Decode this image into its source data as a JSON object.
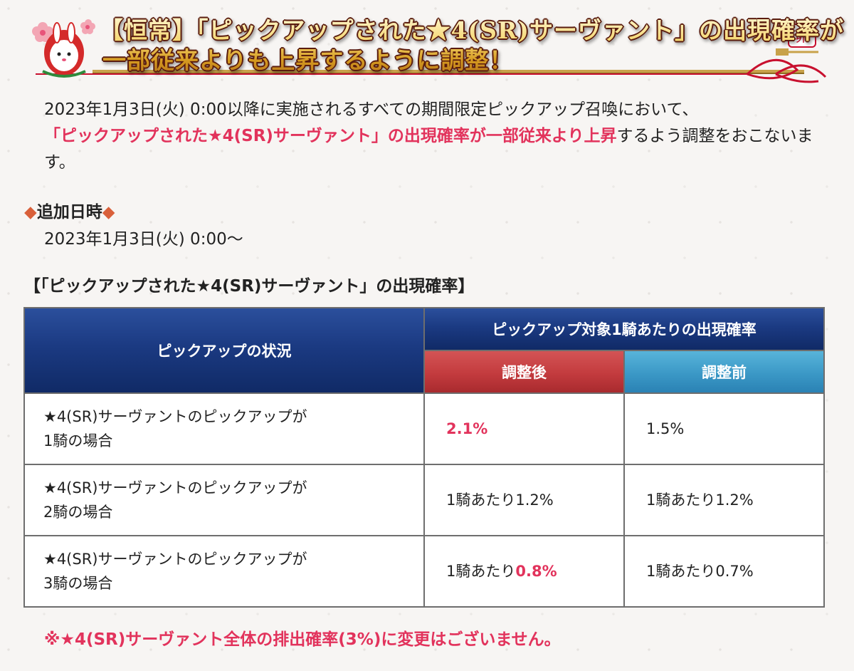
{
  "banner": {
    "title_line1": "【恒常】「ピックアップされた★4(SR)サーヴァント」の出現確率が",
    "title_line2": "一部従来よりも上昇するように調整！",
    "badge_text": "卯",
    "accent_color": "#c8102e"
  },
  "intro": {
    "part1": "2023年1月3日(火) 0:00以降に実施されるすべての期間限定ピックアップ召喚において、",
    "highlight": "「ピックアップされた★4(SR)サーヴァント」の出現確率が一部従来より上昇",
    "part2": "するよう調整をおこないます。"
  },
  "added_date": {
    "diamond": "◆",
    "heading": "追加日時",
    "value": "2023年1月3日(火) 0:00〜"
  },
  "table": {
    "title": "【「ピックアップされた★4(SR)サーヴァント」の出現確率】",
    "header_status": "ピックアップの状況",
    "header_rate": "ピックアップ対象1騎あたりの出現確率",
    "header_after": "調整後",
    "header_before": "調整前",
    "rows": [
      {
        "condition_line1": "★4(SR)サーヴァントのピックアップが",
        "condition_line2": "1騎の場合",
        "after_prefix": "",
        "after_value": "2.1%",
        "before": "1.5%"
      },
      {
        "condition_line1": "★4(SR)サーヴァントのピックアップが",
        "condition_line2": "2騎の場合",
        "after_prefix": "1騎あたり",
        "after_value": "1.2%",
        "before": "1騎あたり1.2%"
      },
      {
        "condition_line1": "★4(SR)サーヴァントのピックアップが",
        "condition_line2": "3騎の場合",
        "after_prefix": "1騎あたり",
        "after_value": "0.8%",
        "before": "1騎あたり0.7%"
      }
    ]
  },
  "note": "※★4(SR)サーヴァント全体の排出確率(3%)に変更はございません。",
  "colors": {
    "highlight": "#e2335c",
    "header_blue": "#1b3a82",
    "header_red": "#c33b3e",
    "header_cyan": "#3b98c6",
    "diamond": "#d9603a"
  }
}
